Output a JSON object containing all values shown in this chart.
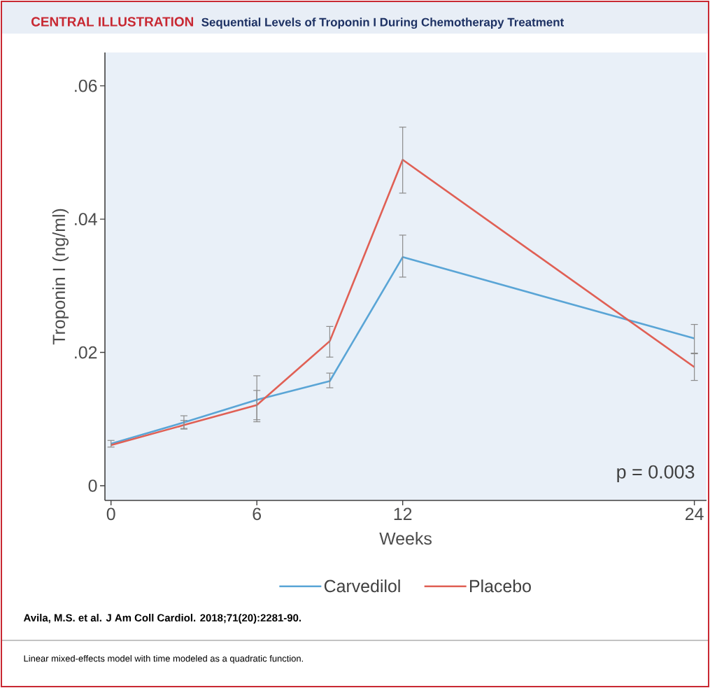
{
  "chart_data": {
    "type": "line",
    "title": "CENTRAL ILLUSTRATION",
    "subtitle": "Sequential Levels of Troponin I During Chemotherapy Treatment",
    "xlabel": "Weeks",
    "ylabel": "Troponin I (ng/ml)",
    "x": [
      0,
      3,
      6,
      9,
      12,
      24
    ],
    "xlim": [
      -0.25,
      24.5
    ],
    "xticks": [
      0,
      6,
      12,
      24
    ],
    "ylim": [
      -0.0022,
      0.065
    ],
    "yticks": [
      {
        "value": 0,
        "label": "0"
      },
      {
        "value": 0.02,
        "label": ".02"
      },
      {
        "value": 0.04,
        "label": ".04"
      },
      {
        "value": 0.06,
        "label": ".06"
      }
    ],
    "series": [
      {
        "name": "Carvedilol",
        "color": "#5aa5d6",
        "values": [
          0.0063,
          0.0095,
          0.0129,
          0.0157,
          0.0343,
          0.0221
        ],
        "errors": [
          [
            0.0058,
            0.0068
          ],
          [
            0.0086,
            0.0105
          ],
          [
            0.0096,
            0.0143
          ],
          [
            0.0147,
            0.0169
          ],
          [
            0.0313,
            0.0376
          ],
          [
            0.0199,
            0.0242
          ]
        ]
      },
      {
        "name": "Placebo",
        "color": "#e06055",
        "values": [
          0.0061,
          0.0091,
          0.0121,
          0.0217,
          0.0489,
          0.0178
        ],
        "errors": [
          null,
          [
            0.0085,
            0.0098
          ],
          [
            0.0099,
            0.0165
          ],
          [
            0.0193,
            0.0239
          ],
          [
            0.0439,
            0.0538
          ],
          [
            0.0158,
            0.0198
          ]
        ]
      }
    ],
    "legend": "bottom",
    "annotations": [
      "p = 0.003",
      "Avila, M.S. et al. J Am Coll Cardiol. 2018;71(20):2281-90.",
      "Linear mixed-effects model with time modeled as a quadratic function."
    ]
  }
}
